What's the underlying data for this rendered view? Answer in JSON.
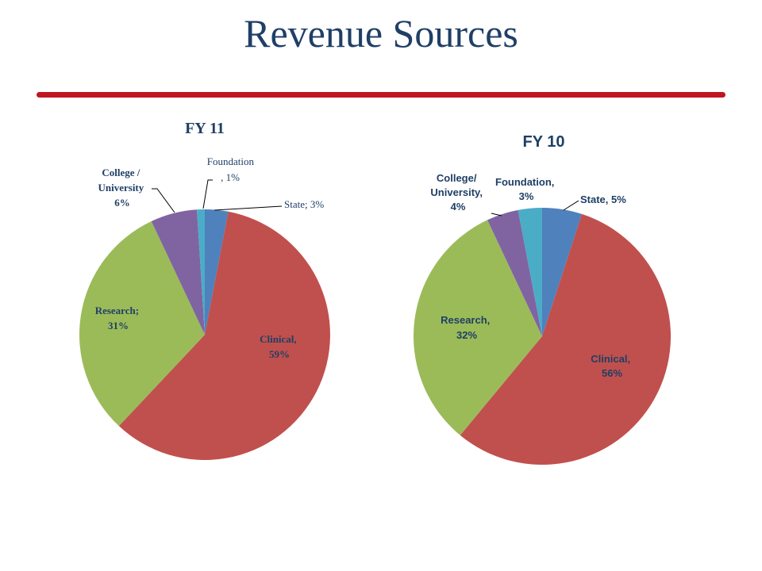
{
  "title": "Revenue Sources",
  "colors": {
    "title": "#1f3f66",
    "rule": "#c0161f",
    "fy11_label": "#1f3f66",
    "fy10_label": "#1f3f66"
  },
  "chart_data": [
    {
      "type": "pie",
      "title": "FY 11",
      "slices": [
        {
          "name": "State",
          "value": 3,
          "label": "State; 3%",
          "color": "#4f81bd"
        },
        {
          "name": "Clinical",
          "value": 59,
          "label_lines": [
            "Clinical,",
            "59%"
          ],
          "color": "#c0504d"
        },
        {
          "name": "Research",
          "value": 31,
          "label_lines": [
            "Research;",
            "31%"
          ],
          "color": "#9bbb59"
        },
        {
          "name": "College / University",
          "value": 6,
          "label_lines": [
            "College /",
            "University",
            "6%"
          ],
          "color": "#8064a2"
        },
        {
          "name": "Foundation",
          "value": 1,
          "label_lines": [
            "Foundation",
            ", 1%"
          ],
          "color": "#4bacc6"
        }
      ]
    },
    {
      "type": "pie",
      "title": "FY 10",
      "slices": [
        {
          "name": "State",
          "value": 5,
          "label": "State, 5%",
          "color": "#4f81bd"
        },
        {
          "name": "Clinical",
          "value": 56,
          "label_lines": [
            "Clinical,",
            "56%"
          ],
          "color": "#c0504d"
        },
        {
          "name": "Research",
          "value": 32,
          "label_lines": [
            "Research,",
            "32%"
          ],
          "color": "#9bbb59"
        },
        {
          "name": "College/ University",
          "value": 4,
          "label_lines": [
            "College/",
            "University,",
            "4%"
          ],
          "color": "#8064a2"
        },
        {
          "name": "Foundation",
          "value": 3,
          "label_lines": [
            "Foundation,",
            "3%"
          ],
          "color": "#4bacc6"
        }
      ]
    }
  ]
}
